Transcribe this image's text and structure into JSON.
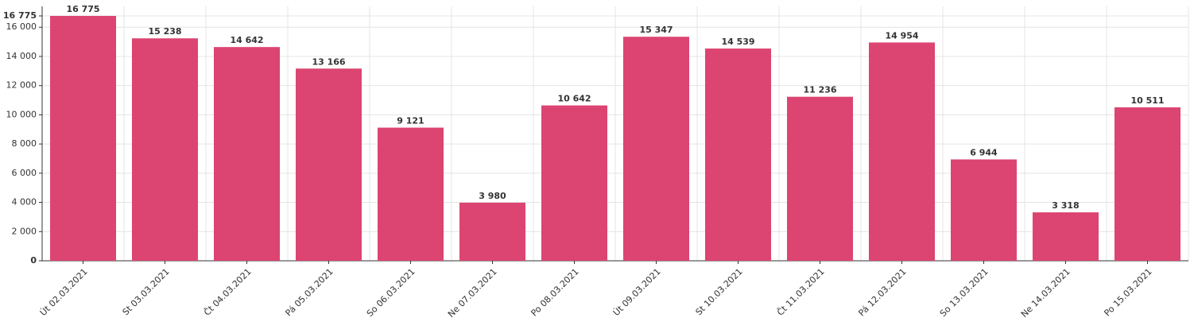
{
  "chart_data": {
    "type": "bar",
    "categories": [
      "Út 02.03.2021",
      "St 03.03.2021",
      "Čt 04.03.2021",
      "Pá 05.03.2021",
      "So 06.03.2021",
      "Ne 07.03.2021",
      "Po 08.03.2021",
      "Út 09.03.2021",
      "St 10.03.2021",
      "Čt 11.03.2021",
      "Pá 12.03.2021",
      "So 13.03.2021",
      "Ne 14.03.2021",
      "Po 15.03.2021"
    ],
    "values": [
      16775,
      15238,
      14642,
      13166,
      9121,
      3980,
      10642,
      15347,
      14539,
      11236,
      14954,
      6944,
      3318,
      10511
    ],
    "value_labels": [
      "16 775",
      "15 238",
      "14 642",
      "13 166",
      "9 121",
      "3 980",
      "10 642",
      "15 347",
      "14 539",
      "11 236",
      "14 954",
      "6 944",
      "3 318",
      "10 511"
    ],
    "color": "#dc4571",
    "ylim": [
      0,
      16775
    ],
    "yticks": [
      0,
      {
        "value": 2000,
        "label": "2 000"
      },
      {
        "value": 4000,
        "label": "4 000"
      },
      {
        "value": 6000,
        "label": "6 000"
      },
      {
        "value": 8000,
        "label": "8 000"
      },
      {
        "value": 10000,
        "label": "10 000"
      },
      {
        "value": 12000,
        "label": "12 000"
      },
      {
        "value": 14000,
        "label": "14 000"
      },
      {
        "value": 16000,
        "label": "16 000"
      },
      {
        "value": 16775,
        "label": "16 775"
      }
    ],
    "grid": true
  }
}
